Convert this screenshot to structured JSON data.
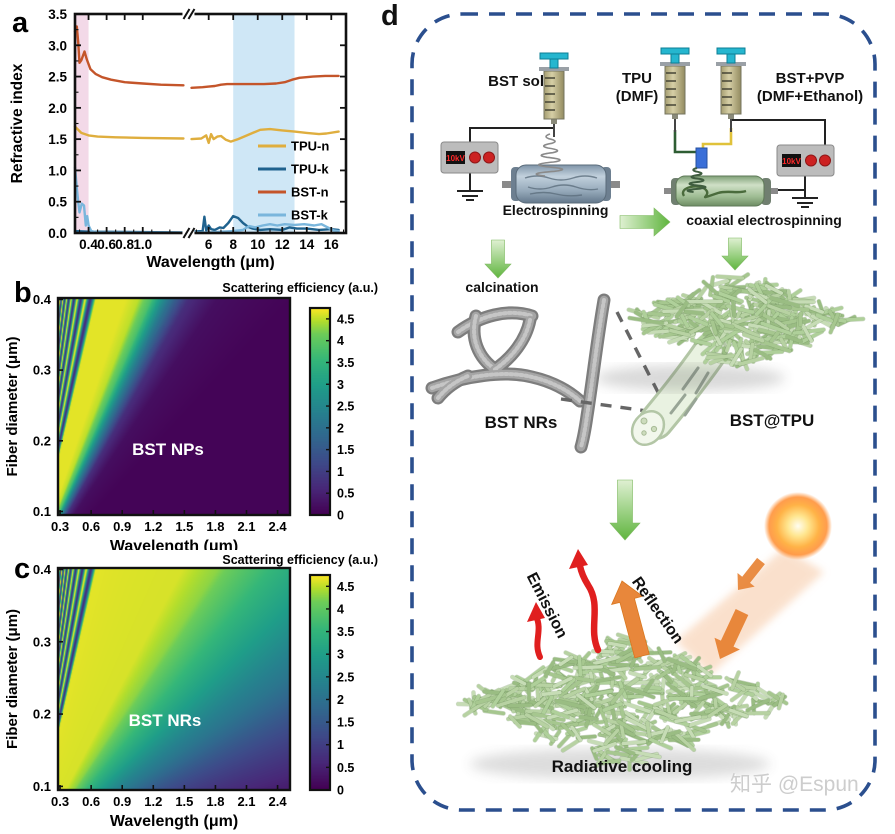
{
  "watermark": "知乎 @Espun",
  "colors": {
    "tpu_n": "#dfae3e",
    "tpu_k": "#1f628e",
    "bst_n": "#c4552a",
    "bst_k": "#7ab6dc",
    "band_uv_pink": "#f3d9e8",
    "band_ir_blue": "#cfe7f6",
    "border_blue": "#2b4f8e",
    "arrow_green": "#5fb53e",
    "emission_red": "#e01f1f",
    "reflection_orange": "#e8873b",
    "mat_green": "#aecf99",
    "axis_black": "#111111"
  },
  "chart_data": [
    {
      "panel": "a",
      "type": "line",
      "xlabel": "Wavelength (μm)",
      "ylabel": "Refractive index",
      "ylim": [
        0,
        3.5
      ],
      "yticks": [
        0.0,
        0.5,
        1.0,
        1.5,
        2.0,
        2.5,
        3.0,
        3.5
      ],
      "x_axis_break": true,
      "x_left_range": [
        0.25,
        1.45
      ],
      "x_right_range": [
        4.6,
        17.2
      ],
      "xticks_left": [
        0.4,
        0.6,
        0.8,
        1.0
      ],
      "xticks_right": [
        6,
        8,
        10,
        12,
        14,
        16
      ],
      "shaded_bands": [
        {
          "x0": 0.25,
          "x1": 0.4,
          "color": "#f3d9e8"
        },
        {
          "x0": 8,
          "x1": 13,
          "color": "#cfe7f6"
        }
      ],
      "legend_position": "inside lower right",
      "series": [
        {
          "name": "TPU-n",
          "color": "#dfae3e",
          "points": [
            [
              0.25,
              1.7
            ],
            [
              0.32,
              1.6
            ],
            [
              0.4,
              1.56
            ],
            [
              0.5,
              1.54
            ],
            [
              0.7,
              1.53
            ],
            [
              1.0,
              1.52
            ],
            [
              1.45,
              1.51
            ],
            [
              4.6,
              1.5
            ],
            [
              5.4,
              1.51
            ],
            [
              5.8,
              1.56
            ],
            [
              6.0,
              1.44
            ],
            [
              6.2,
              1.58
            ],
            [
              6.4,
              1.5
            ],
            [
              6.7,
              1.54
            ],
            [
              7.0,
              1.55
            ],
            [
              7.4,
              1.49
            ],
            [
              7.8,
              1.46
            ],
            [
              8.4,
              1.5
            ],
            [
              9.0,
              1.55
            ],
            [
              9.6,
              1.6
            ],
            [
              10.2,
              1.65
            ],
            [
              11.0,
              1.66
            ],
            [
              12.0,
              1.64
            ],
            [
              13.0,
              1.62
            ],
            [
              14.0,
              1.6
            ],
            [
              15.0,
              1.58
            ],
            [
              15.6,
              1.59
            ],
            [
              16.6,
              1.62
            ]
          ]
        },
        {
          "name": "TPU-k",
          "color": "#1f628e",
          "points": [
            [
              0.25,
              0.03
            ],
            [
              0.4,
              0.02
            ],
            [
              1.45,
              0.01
            ],
            [
              4.6,
              0.02
            ],
            [
              5.5,
              0.03
            ],
            [
              5.65,
              0.26
            ],
            [
              5.8,
              0.04
            ],
            [
              6.0,
              0.12
            ],
            [
              6.2,
              0.06
            ],
            [
              6.5,
              0.05
            ],
            [
              6.9,
              0.09
            ],
            [
              7.2,
              0.08
            ],
            [
              7.6,
              0.16
            ],
            [
              8.0,
              0.27
            ],
            [
              8.4,
              0.24
            ],
            [
              8.8,
              0.16
            ],
            [
              9.2,
              0.1
            ],
            [
              9.6,
              0.07
            ],
            [
              10.2,
              0.05
            ],
            [
              11.0,
              0.06
            ],
            [
              12.0,
              0.05
            ],
            [
              12.6,
              0.09
            ],
            [
              13.2,
              0.07
            ],
            [
              14.0,
              0.07
            ],
            [
              15.0,
              0.05
            ],
            [
              16.0,
              0.06
            ],
            [
              16.6,
              0.05
            ]
          ]
        },
        {
          "name": "BST-n",
          "color": "#c4552a",
          "points": [
            [
              0.25,
              3.22
            ],
            [
              0.27,
              3.3
            ],
            [
              0.285,
              3.05
            ],
            [
              0.3,
              2.72
            ],
            [
              0.32,
              2.76
            ],
            [
              0.355,
              2.9
            ],
            [
              0.38,
              2.78
            ],
            [
              0.42,
              2.62
            ],
            [
              0.48,
              2.54
            ],
            [
              0.55,
              2.49
            ],
            [
              0.65,
              2.45
            ],
            [
              0.8,
              2.41
            ],
            [
              1.0,
              2.39
            ],
            [
              1.2,
              2.37
            ],
            [
              1.45,
              2.36
            ],
            [
              4.6,
              2.32
            ],
            [
              5.5,
              2.33
            ],
            [
              6.0,
              2.34
            ],
            [
              6.5,
              2.35
            ],
            [
              7.0,
              2.37
            ],
            [
              7.5,
              2.38
            ],
            [
              8.5,
              2.38
            ],
            [
              9.5,
              2.38
            ],
            [
              10.5,
              2.38
            ],
            [
              11.5,
              2.39
            ],
            [
              12.2,
              2.41
            ],
            [
              12.8,
              2.45
            ],
            [
              13.4,
              2.48
            ],
            [
              14.5,
              2.5
            ],
            [
              15.5,
              2.51
            ],
            [
              16.6,
              2.51
            ]
          ]
        },
        {
          "name": "BST-k",
          "color": "#7ab6dc",
          "points": [
            [
              0.25,
              1.05
            ],
            [
              0.27,
              0.72
            ],
            [
              0.285,
              0.5
            ],
            [
              0.3,
              0.33
            ],
            [
              0.325,
              0.47
            ],
            [
              0.35,
              0.44
            ],
            [
              0.37,
              0.12
            ],
            [
              0.385,
              0.27
            ],
            [
              0.4,
              0.12
            ],
            [
              0.43,
              0.03
            ],
            [
              0.5,
              0.01
            ],
            [
              1.45,
              0.005
            ],
            [
              4.6,
              0.01
            ],
            [
              6.0,
              0.01
            ],
            [
              7.0,
              0.02
            ],
            [
              8.0,
              0.03
            ],
            [
              8.8,
              0.05
            ],
            [
              9.3,
              0.11
            ],
            [
              9.8,
              0.09
            ],
            [
              10.4,
              0.12
            ],
            [
              11.0,
              0.14
            ],
            [
              11.6,
              0.12
            ],
            [
              12.2,
              0.14
            ],
            [
              13.0,
              0.13
            ],
            [
              13.8,
              0.14
            ],
            [
              14.6,
              0.12
            ],
            [
              15.2,
              0.14
            ],
            [
              15.8,
              0.08
            ],
            [
              16.2,
              0.04
            ],
            [
              16.6,
              0.03
            ]
          ]
        }
      ]
    },
    {
      "panel": "b",
      "type": "heatmap",
      "label_text": "BST NPs",
      "xlabel": "Wavelength (μm)",
      "ylabel": "Fiber diameter (μm)",
      "colorbar_title": "Scattering efficiency (a.u.)",
      "xlim": [
        0.28,
        2.52
      ],
      "ylim": [
        0.095,
        0.402
      ],
      "xticks": [
        0.3,
        0.6,
        0.9,
        1.2,
        1.5,
        1.8,
        2.1,
        2.4
      ],
      "yticks": [
        0.1,
        0.2,
        0.3,
        0.4
      ],
      "colorbar_ticks": [
        0,
        0.5,
        1,
        1.5,
        2,
        2.5,
        3,
        3.5,
        4,
        4.5
      ],
      "colormap": "viridis",
      "value_model": {
        "variable": "r = fiber_diameter / wavelength",
        "profile_r": [
          0,
          0.15,
          0.22,
          0.26,
          0.3,
          0.34,
          0.38,
          0.43,
          0.62
        ],
        "profile_q": [
          0,
          0.03,
          0.2,
          0.7,
          2.2,
          3.8,
          4.5,
          4.65,
          4.65
        ],
        "ripple_start_r": 0.62,
        "ripple_base": 2.7,
        "ripple_amp": 2.0,
        "ripple_period": 0.125,
        "qmax": 4.75
      }
    },
    {
      "panel": "c",
      "type": "heatmap",
      "label_text": "BST NRs",
      "xlabel": "Wavelength (μm)",
      "ylabel": "Fiber diameter (μm)",
      "colorbar_title": "Scattering efficiency (a.u.)",
      "xlim": [
        0.28,
        2.52
      ],
      "ylim": [
        0.095,
        0.402
      ],
      "xticks": [
        0.3,
        0.6,
        0.9,
        1.2,
        1.5,
        1.8,
        2.1,
        2.4
      ],
      "yticks": [
        0.1,
        0.2,
        0.3,
        0.4
      ],
      "colorbar_ticks": [
        0,
        0.5,
        1,
        1.5,
        2,
        2.5,
        3,
        3.5,
        4,
        4.5
      ],
      "colormap": "viridis",
      "value_model": {
        "variable": "r = fiber_diameter / wavelength",
        "profile_r": [
          0,
          0.04,
          0.07,
          0.1,
          0.14,
          0.18,
          0.22,
          0.27,
          0.62
        ],
        "profile_q": [
          0.05,
          0.45,
          1.2,
          2.1,
          3.0,
          3.7,
          4.3,
          4.6,
          4.65
        ],
        "ripple_start_r": 0.62,
        "ripple_base": 2.7,
        "ripple_amp": 2.0,
        "ripple_period": 0.11,
        "qmax": 4.75
      }
    }
  ],
  "panel_d": {
    "label": "d",
    "labels": {
      "bst_sol": "BST sol",
      "tpu_line1": "TPU",
      "tpu_line2": "(DMF)",
      "bst_pvp_line1": "BST+PVP",
      "bst_pvp_line2": "(DMF+Ethanol)",
      "voltage": "10kV",
      "electrospinning": "Electrospinning",
      "coaxial": "coaxial electrospinning",
      "calcination": "calcination",
      "bst_nrs": "BST NRs",
      "bst_tpu": "BST@TPU",
      "emission": "Emission",
      "reflection": "Reflection",
      "radiative_cooling": "Radiative cooling"
    }
  }
}
